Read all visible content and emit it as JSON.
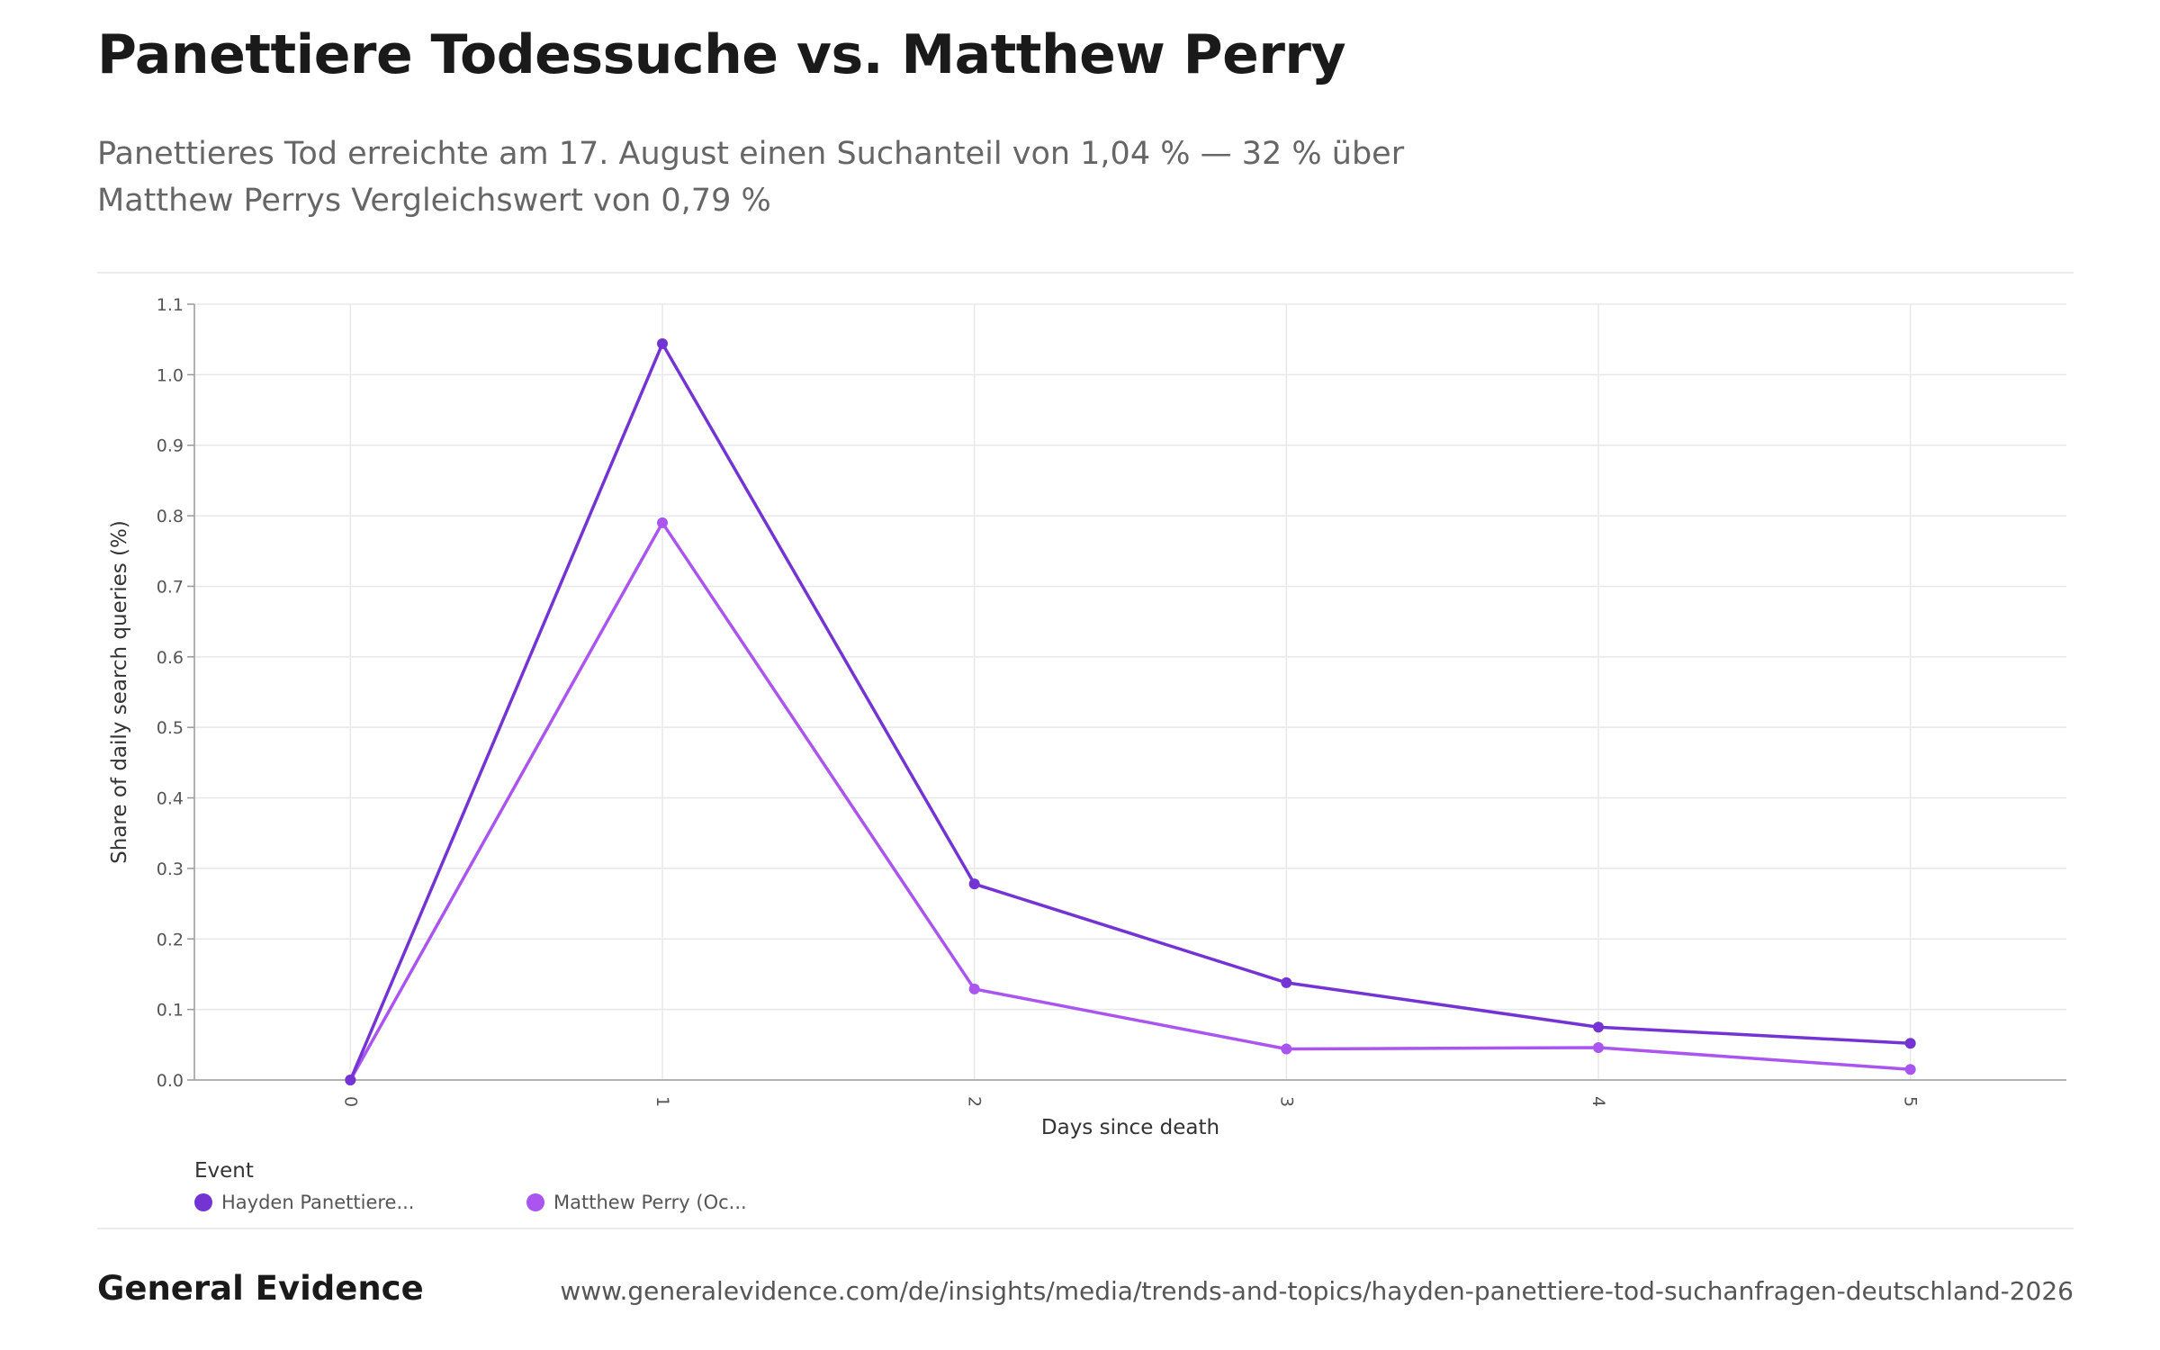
{
  "header": {
    "title": "Panettiere Todessuche vs. Matthew Perry",
    "subtitle": "Panettieres Tod erreichte am 17. August einen Suchanteil von 1,04 % — 32 % über Matthew Perrys Vergleichswert von 0,79 %"
  },
  "chart_data": {
    "type": "line",
    "x": [
      0,
      1,
      2,
      3,
      4,
      5
    ],
    "xlabel": "Days since death",
    "ylabel": "Share of daily search queries (%)",
    "ylim": [
      0,
      1.1
    ],
    "yticks": [
      "0.0",
      "0.1",
      "0.2",
      "0.3",
      "0.4",
      "0.5",
      "0.6",
      "0.7",
      "0.8",
      "0.9",
      "1.0",
      "1.1"
    ],
    "xticks": [
      "0",
      "1",
      "2",
      "3",
      "4",
      "5"
    ],
    "grid": true,
    "legend_placement": "bottom-left",
    "series": [
      {
        "name": "Hayden Panettiere...",
        "color": "#7434d4",
        "values": [
          0.0,
          1.044,
          0.278,
          0.138,
          0.075,
          0.052
        ]
      },
      {
        "name": "Matthew Perry (Oc...",
        "color": "#ab55f0",
        "values": [
          0.0,
          0.79,
          0.129,
          0.044,
          0.046,
          0.015
        ]
      }
    ]
  },
  "legend": {
    "title": "Event"
  },
  "footer": {
    "brand": "General Evidence",
    "url": "www.generalevidence.com/de/insights/media/trends-and-topics/hayden-panettiere-tod-suchanfragen-deutschland-2026"
  }
}
